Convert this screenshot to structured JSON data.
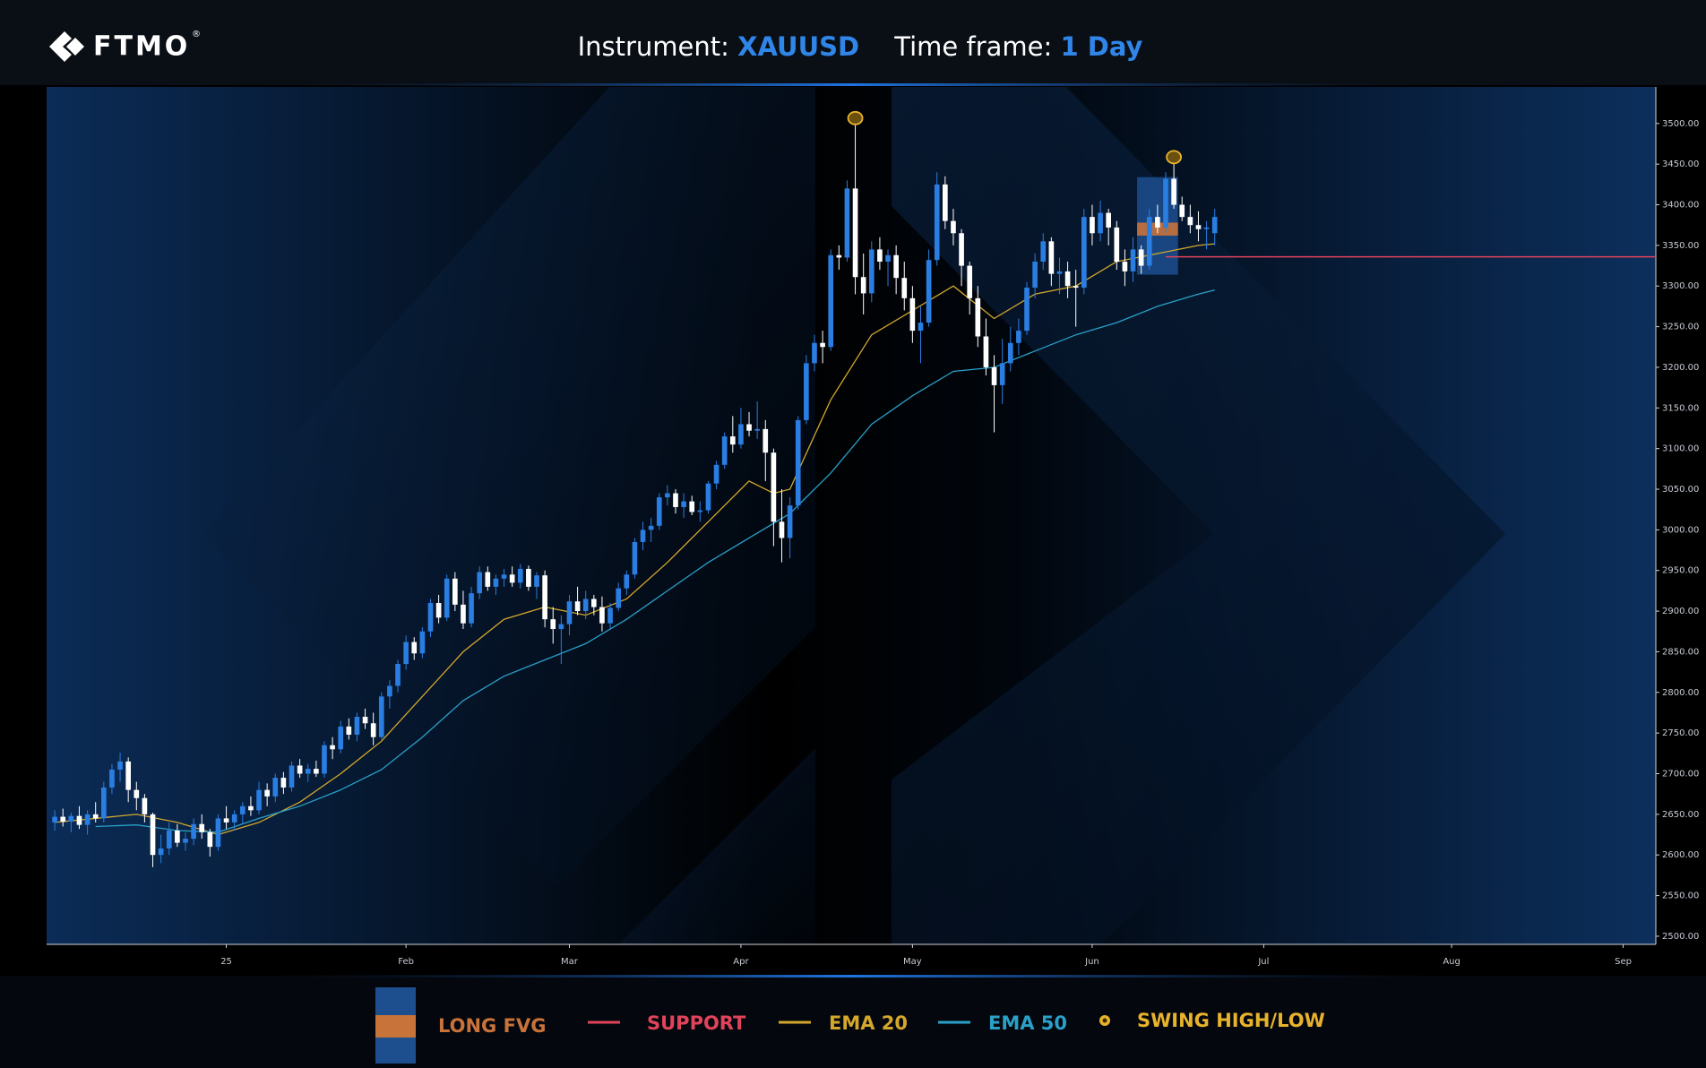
{
  "header": {
    "logo": "FTMO",
    "logo_mark": "®",
    "instrument_label": "Instrument:",
    "instrument": "XAUUSD",
    "timeframe_label": "Time frame:",
    "timeframe": "1 Day"
  },
  "chart_data": {
    "type": "candlestick",
    "candles": {
      "up_color": "#2a7de1",
      "down_color": "#ffffff",
      "open": [
        2640,
        2647,
        2641,
        2648,
        2637,
        2650,
        2645,
        2683,
        2705,
        2715,
        2680,
        2670,
        2650,
        2600,
        2608,
        2630,
        2615,
        2620,
        2638,
        2628,
        2610,
        2645,
        2640,
        2650,
        2660,
        2655,
        2680,
        2672,
        2695,
        2683,
        2710,
        2700,
        2706,
        2700,
        2735,
        2730,
        2758,
        2748,
        2770,
        2762,
        2745,
        2795,
        2808,
        2835,
        2862,
        2848,
        2875,
        2910,
        2892,
        2940,
        2908,
        2885,
        2922,
        2948,
        2930,
        2940,
        2945,
        2935,
        2952,
        2930,
        2944,
        2890,
        2878,
        2884,
        2912,
        2900,
        2915,
        2905,
        2885,
        2904,
        2928,
        2945,
        2985,
        3000,
        3005,
        3040,
        3045,
        3028,
        3035,
        3022,
        3024,
        3057,
        3080,
        3115,
        3105,
        3130,
        3122,
        3124,
        3095,
        3010,
        2990,
        3030,
        3135,
        3205,
        3230,
        3225,
        3338,
        3335,
        3420,
        3311,
        3291,
        3345,
        3330,
        3338,
        3310,
        3285,
        3245,
        3255,
        3332,
        3425,
        3380,
        3365,
        3325,
        3285,
        3238,
        3200,
        3178,
        3205,
        3230,
        3245,
        3298,
        3330,
        3355,
        3315,
        3318,
        3300,
        3298,
        3385,
        3365,
        3390,
        3372,
        3330,
        3318,
        3345,
        3325,
        3385,
        3372,
        3432,
        3400,
        3385,
        3375,
        3370,
        3365
      ],
      "high": [
        2655,
        2657,
        2652,
        2660,
        2655,
        2665,
        2690,
        2712,
        2726,
        2720,
        2690,
        2675,
        2652,
        2625,
        2640,
        2638,
        2628,
        2645,
        2650,
        2632,
        2650,
        2660,
        2655,
        2665,
        2672,
        2690,
        2688,
        2700,
        2702,
        2715,
        2718,
        2712,
        2716,
        2740,
        2745,
        2765,
        2768,
        2775,
        2780,
        2775,
        2800,
        2815,
        2840,
        2870,
        2868,
        2880,
        2915,
        2920,
        2945,
        2948,
        2925,
        2930,
        2955,
        2955,
        2945,
        2952,
        2955,
        2958,
        2956,
        2948,
        2950,
        2905,
        2895,
        2920,
        2930,
        2925,
        2920,
        2918,
        2910,
        2935,
        2950,
        2990,
        3010,
        3015,
        3045,
        3055,
        3050,
        3045,
        3042,
        3035,
        3060,
        3085,
        3120,
        3140,
        3150,
        3145,
        3158,
        3135,
        3100,
        3050,
        3040,
        3140,
        3215,
        3240,
        3245,
        3345,
        3350,
        3430,
        3500,
        3340,
        3355,
        3360,
        3345,
        3350,
        3330,
        3300,
        3275,
        3345,
        3440,
        3435,
        3395,
        3370,
        3330,
        3300,
        3260,
        3215,
        3235,
        3250,
        3260,
        3305,
        3340,
        3365,
        3360,
        3335,
        3330,
        3320,
        3395,
        3400,
        3405,
        3395,
        3380,
        3345,
        3360,
        3350,
        3395,
        3400,
        3440,
        3452,
        3410,
        3400,
        3392,
        3380,
        3395
      ],
      "low": [
        2630,
        2635,
        2628,
        2632,
        2625,
        2640,
        2640,
        2675,
        2690,
        2665,
        2655,
        2640,
        2585,
        2590,
        2600,
        2610,
        2605,
        2612,
        2620,
        2598,
        2605,
        2632,
        2630,
        2638,
        2648,
        2650,
        2660,
        2665,
        2675,
        2678,
        2695,
        2690,
        2696,
        2695,
        2718,
        2725,
        2742,
        2740,
        2755,
        2735,
        2742,
        2780,
        2800,
        2828,
        2840,
        2842,
        2868,
        2885,
        2888,
        2900,
        2878,
        2880,
        2915,
        2925,
        2920,
        2930,
        2930,
        2928,
        2925,
        2915,
        2880,
        2860,
        2835,
        2870,
        2895,
        2890,
        2895,
        2875,
        2878,
        2900,
        2920,
        2940,
        2975,
        2985,
        3000,
        3030,
        3020,
        3015,
        3018,
        3010,
        3020,
        3050,
        3075,
        3095,
        3100,
        3115,
        3112,
        3060,
        2980,
        2960,
        2965,
        3025,
        3130,
        3195,
        3205,
        3220,
        3320,
        3330,
        3290,
        3265,
        3280,
        3320,
        3300,
        3290,
        3270,
        3230,
        3205,
        3250,
        3325,
        3370,
        3350,
        3300,
        3265,
        3225,
        3190,
        3120,
        3155,
        3195,
        3215,
        3240,
        3285,
        3320,
        3300,
        3290,
        3285,
        3250,
        3290,
        3350,
        3355,
        3350,
        3320,
        3300,
        3305,
        3315,
        3320,
        3365,
        3365,
        3395,
        3380,
        3365,
        3355,
        3345,
        3350
      ],
      "close": [
        2647,
        2641,
        2648,
        2637,
        2650,
        2645,
        2683,
        2705,
        2715,
        2680,
        2670,
        2650,
        2600,
        2608,
        2630,
        2615,
        2620,
        2638,
        2628,
        2610,
        2645,
        2640,
        2650,
        2660,
        2655,
        2680,
        2672,
        2695,
        2683,
        2710,
        2700,
        2706,
        2700,
        2735,
        2730,
        2758,
        2748,
        2770,
        2762,
        2745,
        2795,
        2808,
        2835,
        2862,
        2848,
        2875,
        2910,
        2892,
        2940,
        2908,
        2885,
        2922,
        2948,
        2930,
        2940,
        2945,
        2935,
        2952,
        2930,
        2944,
        2890,
        2878,
        2884,
        2912,
        2900,
        2915,
        2905,
        2885,
        2904,
        2928,
        2945,
        2985,
        3000,
        3005,
        3040,
        3045,
        3028,
        3035,
        3022,
        3024,
        3057,
        3080,
        3115,
        3105,
        3130,
        3122,
        3124,
        3095,
        3010,
        2990,
        3030,
        3135,
        3205,
        3230,
        3225,
        3338,
        3335,
        3420,
        3311,
        3291,
        3345,
        3330,
        3338,
        3310,
        3285,
        3245,
        3255,
        3332,
        3425,
        3380,
        3365,
        3325,
        3285,
        3238,
        3200,
        3178,
        3205,
        3230,
        3245,
        3298,
        3330,
        3355,
        3315,
        3318,
        3300,
        3298,
        3385,
        3365,
        3390,
        3372,
        3330,
        3318,
        3345,
        3325,
        3385,
        3372,
        3432,
        3400,
        3385,
        3375,
        3370,
        3372,
        3385
      ]
    },
    "lines": [
      {
        "name": "EMA 20",
        "color": "#d4a72c",
        "x": [
          0,
          10,
          15,
          20,
          25,
          30,
          35,
          40,
          45,
          50,
          55,
          60,
          65,
          70,
          75,
          80,
          85,
          88,
          90,
          95,
          100,
          105,
          110,
          115,
          120,
          125,
          130,
          135,
          140,
          142
        ],
        "values": [
          2640,
          2650,
          2640,
          2625,
          2640,
          2665,
          2700,
          2740,
          2795,
          2850,
          2890,
          2905,
          2895,
          2915,
          2960,
          3010,
          3060,
          3045,
          3050,
          3160,
          3240,
          3270,
          3300,
          3260,
          3290,
          3300,
          3330,
          3340,
          3350,
          3352
        ]
      },
      {
        "name": "EMA 50",
        "color": "#2aa0c8",
        "x": [
          5,
          10,
          15,
          20,
          25,
          30,
          35,
          40,
          45,
          50,
          55,
          60,
          65,
          70,
          75,
          80,
          85,
          90,
          95,
          100,
          105,
          110,
          115,
          120,
          125,
          130,
          135,
          140,
          142
        ],
        "values": [
          2635,
          2637,
          2630,
          2628,
          2645,
          2660,
          2680,
          2705,
          2745,
          2790,
          2820,
          2840,
          2860,
          2890,
          2925,
          2960,
          2990,
          3020,
          3070,
          3130,
          3165,
          3195,
          3200,
          3220,
          3240,
          3255,
          3275,
          3290,
          3295
        ]
      }
    ],
    "fvg": {
      "name": "LONG FVG",
      "color": "#1d4f8f",
      "gap_color": "#c8733a",
      "x": [
        133,
        137
      ],
      "low": 3314,
      "high": 3434,
      "gap_low": 3362,
      "gap_high": 3378
    },
    "support": {
      "name": "SUPPORT",
      "color": "#e0435b",
      "value": 3336,
      "x_start": 136
    },
    "swing_points": {
      "name": "SWING HIGH/LOW",
      "color": "#e8b32c",
      "x": [
        98,
        137
      ],
      "values": [
        3500,
        3452
      ]
    },
    "xlim": [
      -1,
      196
    ],
    "ylim": [
      2490,
      3545
    ],
    "xticks": [
      {
        "value": 21,
        "label": "25"
      },
      {
        "value": 43,
        "label": "Feb"
      },
      {
        "value": 63,
        "label": "Mar"
      },
      {
        "value": 84,
        "label": "Apr"
      },
      {
        "value": 105,
        "label": "May"
      },
      {
        "value": 127,
        "label": "Jun"
      },
      {
        "value": 148,
        "label": "Jul"
      },
      {
        "value": 171,
        "label": "Aug"
      },
      {
        "value": 192,
        "label": "Sep"
      }
    ],
    "yticks": [
      {
        "value": 2500,
        "label": "2500.00"
      },
      {
        "value": 2550,
        "label": "2550.00"
      },
      {
        "value": 2600,
        "label": "2600.00"
      },
      {
        "value": 2650,
        "label": "2650.00"
      },
      {
        "value": 2700,
        "label": "2700.00"
      },
      {
        "value": 2750,
        "label": "2750.00"
      },
      {
        "value": 2800,
        "label": "2800.00"
      },
      {
        "value": 2850,
        "label": "2850.00"
      },
      {
        "value": 2900,
        "label": "2900.00"
      },
      {
        "value": 2950,
        "label": "2950.00"
      },
      {
        "value": 3000,
        "label": "3000.00"
      },
      {
        "value": 3050,
        "label": "3050.00"
      },
      {
        "value": 3100,
        "label": "3100.00"
      },
      {
        "value": 3150,
        "label": "3150.00"
      },
      {
        "value": 3200,
        "label": "3200.00"
      },
      {
        "value": 3250,
        "label": "3250.00"
      },
      {
        "value": 3300,
        "label": "3300.00"
      },
      {
        "value": 3350,
        "label": "3350.00"
      },
      {
        "value": 3400,
        "label": "3400.00"
      },
      {
        "value": 3450,
        "label": "3450.00"
      },
      {
        "value": 3500,
        "label": "3500.00"
      }
    ]
  }
}
